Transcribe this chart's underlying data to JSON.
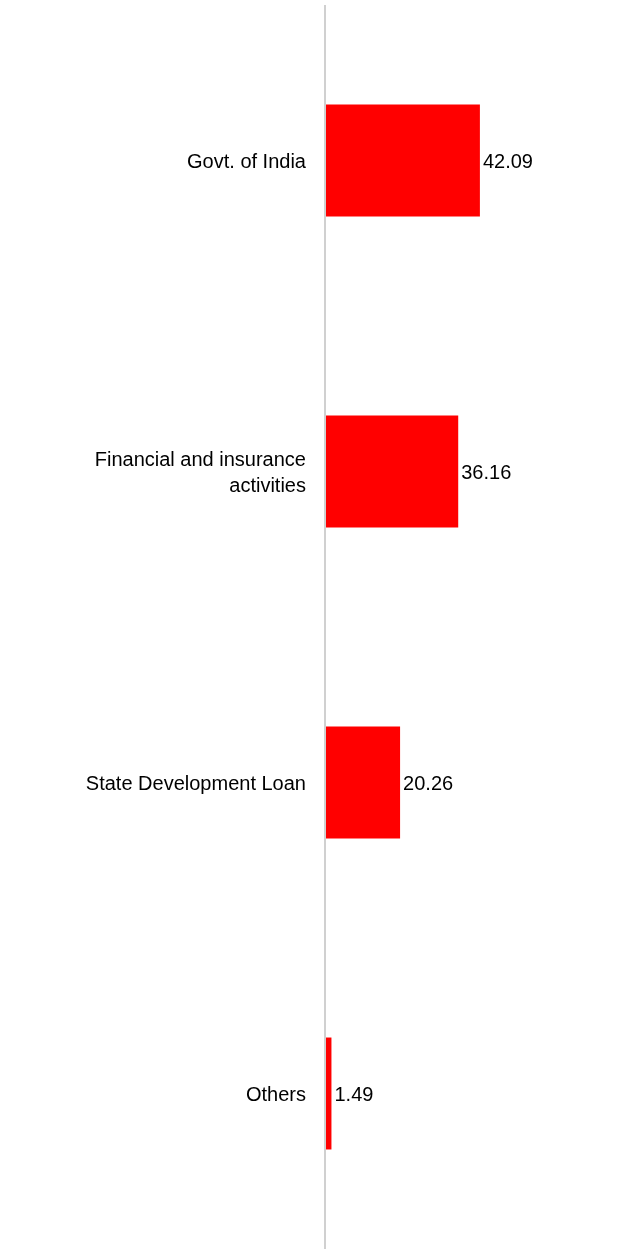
{
  "chart_data": {
    "type": "bar",
    "orientation": "horizontal",
    "categories": [
      "Govt. of India",
      "Financial and insurance activities",
      "State Development Loan",
      "Others"
    ],
    "values": [
      42.09,
      36.16,
      20.26,
      1.49
    ],
    "color": "#ff0000",
    "data_labels": true
  }
}
